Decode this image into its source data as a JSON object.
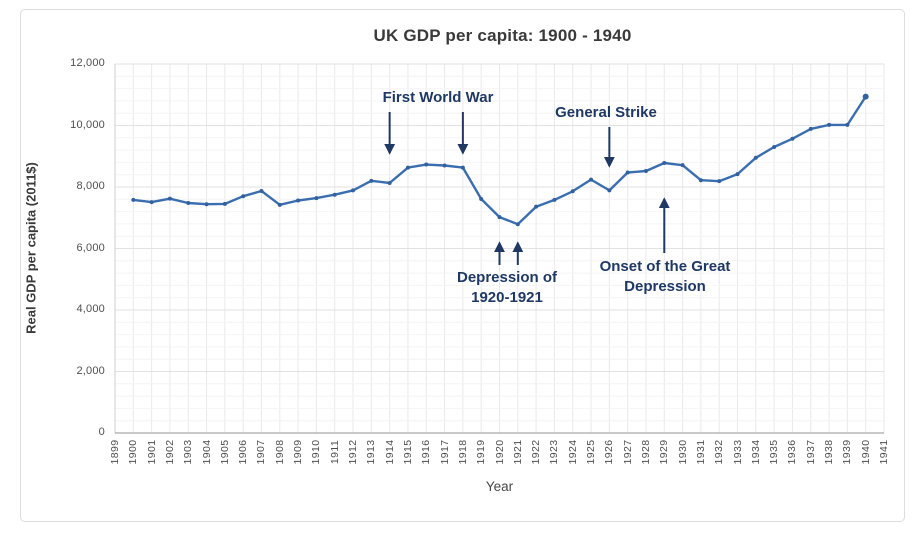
{
  "title": "UK GDP per capita: 1900 - 1940",
  "axes": {
    "x_label": "Year",
    "y_label": "Real GDP per capita (2011$)"
  },
  "chart_data": {
    "type": "line",
    "title": "UK GDP per capita: 1900 - 1940",
    "xlabel": "Year",
    "ylabel": "Real GDP per capita (2011$)",
    "xlim": [
      1899,
      1941
    ],
    "ylim": [
      0,
      12000
    ],
    "grid": true,
    "legend": false,
    "x": [
      1900,
      1901,
      1902,
      1903,
      1904,
      1905,
      1906,
      1907,
      1908,
      1909,
      1910,
      1911,
      1912,
      1913,
      1914,
      1915,
      1916,
      1917,
      1918,
      1919,
      1920,
      1921,
      1922,
      1923,
      1924,
      1925,
      1926,
      1927,
      1928,
      1929,
      1930,
      1931,
      1932,
      1933,
      1934,
      1935,
      1936,
      1937,
      1938,
      1939,
      1940
    ],
    "series": [
      {
        "name": "Real GDP per capita (2011$)",
        "values": [
          7580,
          7510,
          7620,
          7480,
          7440,
          7450,
          7700,
          7870,
          7420,
          7560,
          7640,
          7750,
          7890,
          8200,
          8130,
          8630,
          8730,
          8700,
          8630,
          7610,
          7020,
          6790,
          7360,
          7580,
          7860,
          8240,
          7890,
          8470,
          8520,
          8780,
          8710,
          8220,
          8190,
          8420,
          8950,
          9300,
          9570,
          9890,
          10020,
          10020,
          10940
        ]
      }
    ],
    "x_ticks": [
      1899,
      1900,
      1901,
      1902,
      1903,
      1904,
      1905,
      1906,
      1907,
      1908,
      1909,
      1910,
      1911,
      1912,
      1913,
      1914,
      1915,
      1916,
      1917,
      1918,
      1919,
      1920,
      1921,
      1922,
      1923,
      1924,
      1925,
      1926,
      1927,
      1928,
      1929,
      1930,
      1931,
      1932,
      1933,
      1934,
      1935,
      1936,
      1937,
      1938,
      1939,
      1940,
      1941
    ],
    "y_ticks": [
      {
        "value": 0,
        "label": "0"
      },
      {
        "value": 2000,
        "label": "2,000"
      },
      {
        "value": 4000,
        "label": "4,000"
      },
      {
        "value": 6000,
        "label": "6,000"
      },
      {
        "value": 8000,
        "label": "8,000"
      },
      {
        "value": 10000,
        "label": "10,000"
      },
      {
        "value": 12000,
        "label": "12,000"
      }
    ],
    "y_minor_step": 400,
    "colors": {
      "line": "#3a6eb0",
      "marker": "#33619e",
      "annotation": "#1f3864",
      "grid_vertical": "#e9e9e9",
      "grid_major": "#e2e2e2",
      "grid_minor": "#f4f4f4",
      "axis_bottom": "#a9a9a9",
      "axis_left": "#cfcfcf"
    }
  },
  "annotations": [
    {
      "id": "first-world-war",
      "label": "First World War",
      "arrow_years": [
        1914,
        1918
      ],
      "arrow_dir": "down",
      "arrow_from_y": 112,
      "arrow_to_y": 153
    },
    {
      "id": "general-strike",
      "label": "General Strike",
      "arrow_years": [
        1926
      ],
      "arrow_dir": "down",
      "arrow_from_y": 127,
      "arrow_to_y": 166
    },
    {
      "id": "depression-1920-1921",
      "label": "Depression of 1920-1921",
      "arrow_years": [
        1920,
        1921
      ],
      "arrow_dir": "up",
      "arrow_from_y": 265,
      "arrow_to_y": 243
    },
    {
      "id": "onset-great-depression",
      "label": "Onset of the Great Depression",
      "arrow_years": [
        1929
      ],
      "arrow_dir": "up",
      "arrow_from_y": 253,
      "arrow_to_y": 199
    }
  ]
}
